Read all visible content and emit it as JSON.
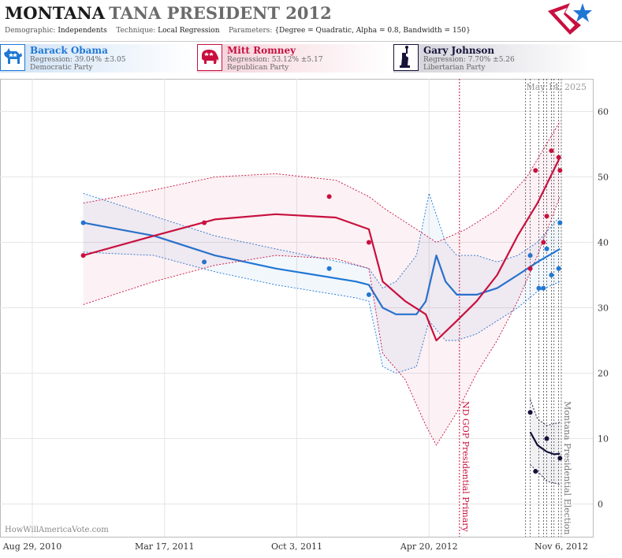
{
  "header": {
    "title_state": "MONTANA",
    "title_rest": "TANA PRESIDENT 2012",
    "demographic_label": "Demographic:",
    "demographic_value": "Independents",
    "technique_label": "Technique:",
    "technique_value": "Local Regression",
    "parameters_label": "Parameters:",
    "parameters_value": "{Degree = Quadratic, Alpha = 0.8, Bandwidth = 150}"
  },
  "candidates": [
    {
      "name": "Barack Obama",
      "regression": "Regression: 39.04% ±3.05",
      "party": "Democratic Party",
      "color": "#1f77d4"
    },
    {
      "name": "Mitt Romney",
      "regression": "Regression: 53.12% ±5.17",
      "party": "Republican Party",
      "color": "#c8103e"
    },
    {
      "name": "Gary Johnson",
      "regression": "Regression: 7.70% ±5.26",
      "party": "Libertarian Party",
      "color": "#15123a"
    }
  ],
  "footer": {
    "watermark": "HowWillAmericaVote.com"
  },
  "chart_data": {
    "type": "scatter",
    "date_label": "May 14, 2025",
    "x_range": [
      "2010-08-29",
      "2012-11-06"
    ],
    "ylim": [
      -5,
      65
    ],
    "y_ticks": [
      0,
      10,
      20,
      30,
      40,
      50,
      60
    ],
    "x_ticks": [
      {
        "date": "2010-08-29",
        "label": "Aug 29, 2010"
      },
      {
        "date": "2011-03-17",
        "label": "Mar 17, 2011"
      },
      {
        "date": "2011-10-03",
        "label": "Oct 3, 2011"
      },
      {
        "date": "2012-04-20",
        "label": "Apr 20, 2012"
      },
      {
        "date": "2012-11-06",
        "label": "Nov 6, 2012"
      }
    ],
    "grid": true,
    "events": [
      {
        "date": "2012-06-05",
        "label": "ND GOP Presidential Primary",
        "color": "#c8103e"
      },
      {
        "date": "2012-11-06",
        "label": "Montana Presidential Election",
        "color": "#777777"
      }
    ],
    "poll_dates": [
      "2012-09-13",
      "2012-09-20",
      "2012-10-03",
      "2012-10-10",
      "2012-10-15",
      "2012-10-22",
      "2012-10-26",
      "2012-11-02"
    ],
    "series": [
      {
        "name": "Barack Obama",
        "color": "#1f77d4",
        "points": [
          [
            "2010-11-14",
            43
          ],
          [
            "2011-05-16",
            37
          ],
          [
            "2011-11-21",
            36
          ],
          [
            "2012-01-20",
            32
          ],
          [
            "2012-09-20",
            38
          ],
          [
            "2012-10-03",
            33
          ],
          [
            "2012-10-10",
            33
          ],
          [
            "2012-10-15",
            39
          ],
          [
            "2012-10-22",
            35
          ],
          [
            "2012-11-02",
            36
          ],
          [
            "2012-11-04",
            43
          ]
        ],
        "trend": [
          [
            "2010-11-14",
            43
          ],
          [
            "2011-03-01",
            41
          ],
          [
            "2011-06-01",
            38
          ],
          [
            "2011-09-01",
            36
          ],
          [
            "2012-01-01",
            34
          ],
          [
            "2012-01-20",
            33.5
          ],
          [
            "2012-02-10",
            30
          ],
          [
            "2012-03-01",
            29
          ],
          [
            "2012-04-01",
            29
          ],
          [
            "2012-04-15",
            31
          ],
          [
            "2012-05-01",
            38
          ],
          [
            "2012-05-15",
            34
          ],
          [
            "2012-06-01",
            32
          ],
          [
            "2012-07-01",
            32
          ],
          [
            "2012-08-01",
            33
          ],
          [
            "2012-09-01",
            35
          ],
          [
            "2012-10-01",
            37
          ],
          [
            "2012-11-04",
            39
          ]
        ],
        "band_upper": [
          [
            "2010-11-14",
            47.5
          ],
          [
            "2011-03-01",
            44
          ],
          [
            "2011-06-01",
            41
          ],
          [
            "2011-09-01",
            39
          ],
          [
            "2012-01-01",
            36.5
          ],
          [
            "2012-01-20",
            36
          ],
          [
            "2012-02-10",
            33
          ],
          [
            "2012-03-01",
            34
          ],
          [
            "2012-04-01",
            38
          ],
          [
            "2012-04-20",
            47.5
          ],
          [
            "2012-05-15",
            40
          ],
          [
            "2012-06-01",
            38
          ],
          [
            "2012-07-01",
            38
          ],
          [
            "2012-08-01",
            37
          ],
          [
            "2012-09-01",
            38
          ],
          [
            "2012-10-01",
            40
          ],
          [
            "2012-11-04",
            44
          ]
        ],
        "band_lower": [
          [
            "2010-11-14",
            38.5
          ],
          [
            "2011-03-01",
            38
          ],
          [
            "2011-06-01",
            35.5
          ],
          [
            "2011-09-01",
            33.5
          ],
          [
            "2012-01-01",
            31.5
          ],
          [
            "2012-01-20",
            31
          ],
          [
            "2012-02-10",
            21
          ],
          [
            "2012-03-01",
            20
          ],
          [
            "2012-04-01",
            21
          ],
          [
            "2012-04-20",
            28
          ],
          [
            "2012-05-15",
            25
          ],
          [
            "2012-06-01",
            25
          ],
          [
            "2012-07-01",
            26
          ],
          [
            "2012-08-01",
            28
          ],
          [
            "2012-09-01",
            30
          ],
          [
            "2012-10-01",
            32.5
          ],
          [
            "2012-11-04",
            34
          ]
        ]
      },
      {
        "name": "Mitt Romney",
        "color": "#c8103e",
        "points": [
          [
            "2010-11-14",
            38
          ],
          [
            "2011-05-16",
            43
          ],
          [
            "2011-11-21",
            47
          ],
          [
            "2012-01-20",
            40
          ],
          [
            "2012-09-20",
            36
          ],
          [
            "2012-09-28",
            51
          ],
          [
            "2012-10-10",
            40
          ],
          [
            "2012-10-15",
            44
          ],
          [
            "2012-10-22",
            54
          ],
          [
            "2012-11-02",
            53
          ],
          [
            "2012-11-04",
            51
          ]
        ],
        "trend": [
          [
            "2010-11-14",
            38
          ],
          [
            "2011-03-01",
            41
          ],
          [
            "2011-06-01",
            43.5
          ],
          [
            "2011-09-01",
            44.3
          ],
          [
            "2011-12-01",
            43.8
          ],
          [
            "2012-01-20",
            42
          ],
          [
            "2012-02-10",
            34
          ],
          [
            "2012-03-15",
            31
          ],
          [
            "2012-04-15",
            29
          ],
          [
            "2012-05-01",
            25
          ],
          [
            "2012-06-01",
            28
          ],
          [
            "2012-07-01",
            31
          ],
          [
            "2012-08-01",
            35
          ],
          [
            "2012-09-01",
            41
          ],
          [
            "2012-10-01",
            46
          ],
          [
            "2012-11-04",
            53
          ]
        ],
        "band_upper": [
          [
            "2010-11-14",
            46
          ],
          [
            "2011-03-01",
            48
          ],
          [
            "2011-06-01",
            50
          ],
          [
            "2011-09-01",
            50.5
          ],
          [
            "2011-12-01",
            49.5
          ],
          [
            "2012-01-20",
            47
          ],
          [
            "2012-02-15",
            45
          ],
          [
            "2012-04-01",
            42
          ],
          [
            "2012-05-01",
            40
          ],
          [
            "2012-06-15",
            42
          ],
          [
            "2012-08-01",
            45
          ],
          [
            "2012-09-15",
            50
          ],
          [
            "2012-11-04",
            58.5
          ]
        ],
        "band_lower": [
          [
            "2010-11-14",
            30.5
          ],
          [
            "2011-03-01",
            34
          ],
          [
            "2011-06-01",
            36.5
          ],
          [
            "2011-09-01",
            38
          ],
          [
            "2011-12-01",
            37.5
          ],
          [
            "2012-01-20",
            36
          ],
          [
            "2012-02-10",
            23
          ],
          [
            "2012-03-15",
            19
          ],
          [
            "2012-04-15",
            12
          ],
          [
            "2012-05-01",
            9
          ],
          [
            "2012-06-01",
            14
          ],
          [
            "2012-07-01",
            20
          ],
          [
            "2012-08-01",
            25
          ],
          [
            "2012-09-01",
            31
          ],
          [
            "2012-10-01",
            38
          ],
          [
            "2012-11-04",
            47
          ]
        ]
      },
      {
        "name": "Gary Johnson",
        "color": "#15123a",
        "points": [
          [
            "2012-09-20",
            14
          ],
          [
            "2012-09-28",
            5
          ],
          [
            "2012-10-15",
            10
          ],
          [
            "2012-11-04",
            7
          ]
        ],
        "trend": [
          [
            "2012-09-20",
            11
          ],
          [
            "2012-10-01",
            9
          ],
          [
            "2012-10-15",
            8
          ],
          [
            "2012-10-26",
            7.6
          ],
          [
            "2012-11-04",
            7.7
          ]
        ],
        "band_upper": [
          [
            "2012-09-20",
            16
          ],
          [
            "2012-10-01",
            13
          ],
          [
            "2012-10-15",
            12
          ],
          [
            "2012-11-04",
            12.5
          ]
        ],
        "band_lower": [
          [
            "2012-09-20",
            6
          ],
          [
            "2012-10-01",
            5
          ],
          [
            "2012-10-15",
            3.5
          ],
          [
            "2012-11-04",
            3
          ]
        ]
      }
    ]
  }
}
